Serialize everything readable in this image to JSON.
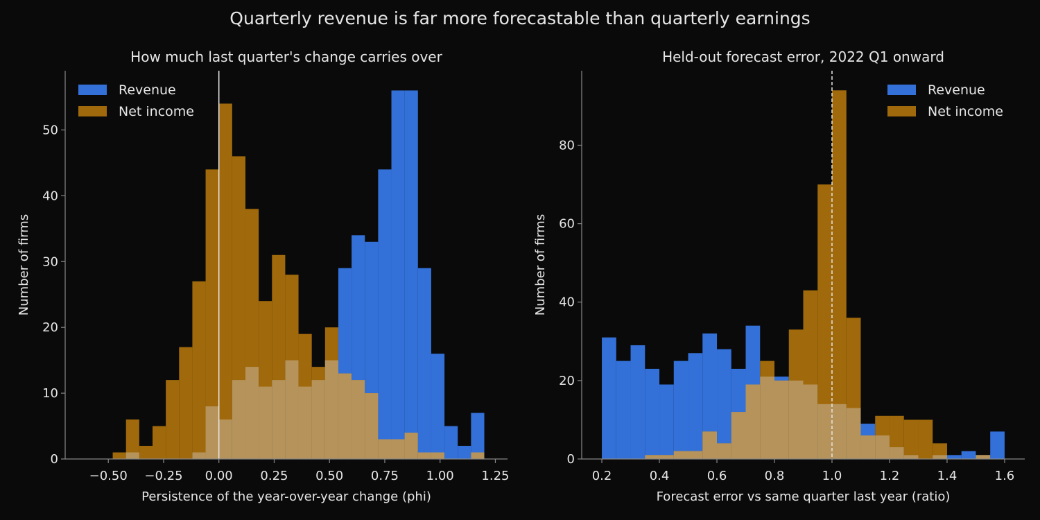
{
  "figure": {
    "suptitle": "Quarterly revenue is far more forecastable than quarterly earnings",
    "background": "#0a0a0a",
    "text_color": "#e6e6e6",
    "axis_color": "#888888"
  },
  "chart_data": [
    {
      "type": "bar",
      "subtype": "overlapping-histogram",
      "title": "How much last quarter's change carries over",
      "xlabel": "Persistence of the year-over-year change (phi)",
      "ylabel": "Number of firms",
      "xlim": [
        -0.695,
        1.305
      ],
      "ylim": [
        0,
        59
      ],
      "xticks": [
        -0.5,
        -0.25,
        0.0,
        0.25,
        0.5,
        0.75,
        1.0,
        1.25
      ],
      "xtick_labels": [
        "−0.50",
        "−0.25",
        "0.00",
        "0.25",
        "0.50",
        "0.75",
        "1.00",
        "1.25"
      ],
      "yticks": [
        0,
        10,
        20,
        30,
        40,
        50
      ],
      "ytick_labels": [
        "0",
        "10",
        "20",
        "30",
        "40",
        "50"
      ],
      "legend_position": "top-left",
      "bin_start": -0.48,
      "bin_width": 0.06,
      "reference_line": {
        "x": 0.0,
        "style": "solid",
        "color": "#e6e6e6"
      },
      "series": [
        {
          "name": "Revenue",
          "color": "#3370d8",
          "values": [
            0,
            1,
            0,
            0,
            0,
            0,
            1,
            8,
            6,
            12,
            14,
            11,
            12,
            15,
            11,
            12,
            15,
            29,
            34,
            33,
            44,
            56,
            56,
            29,
            16,
            5,
            2,
            7
          ]
        },
        {
          "name": "Net income",
          "color": "#a0690b",
          "values": [
            1,
            6,
            2,
            5,
            12,
            17,
            27,
            44,
            54,
            46,
            38,
            24,
            31,
            28,
            19,
            14,
            20,
            13,
            12,
            10,
            3,
            3,
            4,
            1,
            1,
            0,
            0,
            1
          ]
        }
      ],
      "overlap_color": "#b5935a"
    },
    {
      "type": "bar",
      "subtype": "overlapping-histogram",
      "title": "Held-out forecast error, 2022 Q1 onward",
      "xlabel": "Forecast error vs same quarter last year (ratio)",
      "ylabel": "Number of firms",
      "xlim": [
        0.13,
        1.67
      ],
      "ylim": [
        0,
        99
      ],
      "xticks": [
        0.2,
        0.4,
        0.6,
        0.8,
        1.0,
        1.2,
        1.4,
        1.6
      ],
      "xtick_labels": [
        "0.2",
        "0.4",
        "0.6",
        "0.8",
        "1.0",
        "1.2",
        "1.4",
        "1.6"
      ],
      "yticks": [
        0,
        20,
        40,
        60,
        80
      ],
      "ytick_labels": [
        "0",
        "20",
        "40",
        "60",
        "80"
      ],
      "legend_position": "top-right",
      "bin_start": 0.2,
      "bin_width": 0.05,
      "reference_line": {
        "x": 1.0,
        "style": "dashed",
        "color": "#e6e6e6"
      },
      "series": [
        {
          "name": "Revenue",
          "color": "#3370d8",
          "values": [
            31,
            25,
            29,
            23,
            19,
            25,
            27,
            32,
            28,
            23,
            34,
            21,
            21,
            20,
            19,
            14,
            14,
            13,
            9,
            6,
            3,
            1,
            0,
            1,
            1,
            2,
            1,
            7
          ]
        },
        {
          "name": "Net income",
          "color": "#a0690b",
          "values": [
            0,
            0,
            0,
            1,
            1,
            2,
            2,
            7,
            4,
            12,
            19,
            25,
            20,
            33,
            43,
            70,
            94,
            36,
            6,
            11,
            11,
            10,
            10,
            4,
            0,
            0,
            1,
            0
          ]
        }
      ],
      "overlap_color": "#b5935a"
    }
  ]
}
